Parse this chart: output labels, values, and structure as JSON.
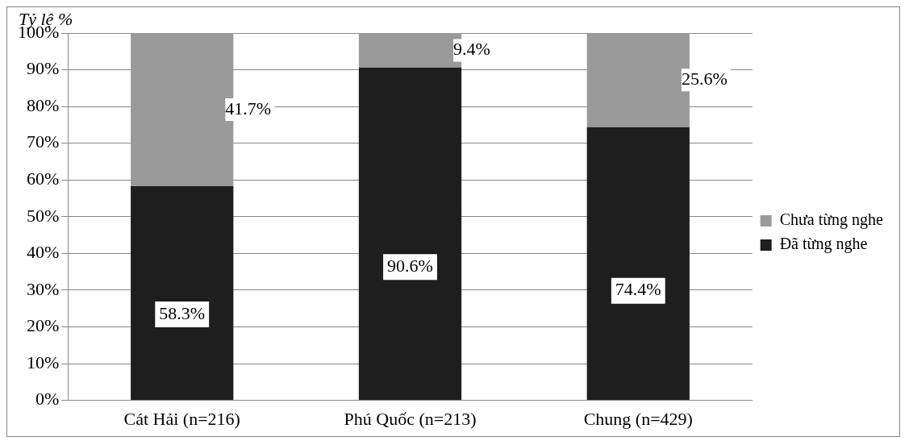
{
  "chart_data": {
    "type": "bar",
    "ylabel": "Tỷ lệ %",
    "categories": [
      "Cát Hải (n=216)",
      "Phú Quốc (n=213)",
      "Chung (n=429)"
    ],
    "stacked": true,
    "series": [
      {
        "name": "Đã từng nghe",
        "color": "#1e1e1e",
        "values": [
          58.3,
          90.6,
          74.4
        ],
        "value_labels": [
          "58.3%",
          "90.6%",
          "74.4%"
        ]
      },
      {
        "name": "Chưa từng nghe",
        "color": "#9a9a9a",
        "values": [
          41.7,
          9.4,
          25.6
        ],
        "value_labels": [
          "41.7%",
          "9.4%",
          "25.6%"
        ]
      }
    ],
    "ylim": [
      0,
      100
    ],
    "yticks": [
      {
        "value": 0,
        "label": "0%"
      },
      {
        "value": 10,
        "label": "10%"
      },
      {
        "value": 20,
        "label": "20%"
      },
      {
        "value": 30,
        "label": "30%"
      },
      {
        "value": 40,
        "label": "40%"
      },
      {
        "value": 50,
        "label": "50%"
      },
      {
        "value": 60,
        "label": "60%"
      },
      {
        "value": 70,
        "label": "70%"
      },
      {
        "value": 80,
        "label": "80%"
      },
      {
        "value": 90,
        "label": "90%"
      },
      {
        "value": 100,
        "label": "100%"
      }
    ],
    "grid": "y",
    "legend": "right"
  }
}
